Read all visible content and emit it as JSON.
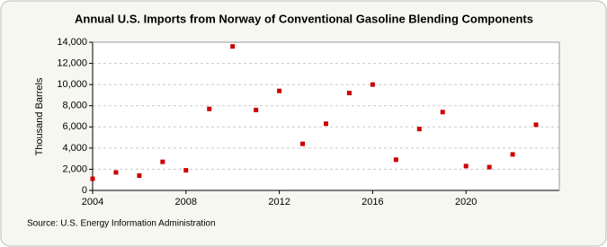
{
  "chart_data": {
    "type": "scatter",
    "title": "Annual U.S. Imports from Norway of Conventional Gasoline Blending Components",
    "y_label": "Thousand Barrels",
    "source": "Source: U.S. Energy Information Administration",
    "x": [
      2004,
      2005,
      2006,
      2007,
      2008,
      2009,
      2010,
      2011,
      2012,
      2013,
      2014,
      2015,
      2016,
      2017,
      2018,
      2019,
      2020,
      2021,
      2022,
      2023
    ],
    "series": [
      {
        "name": "Imports",
        "color": "#cc0000",
        "values": [
          1100,
          1700,
          1400,
          2700,
          1900,
          7700,
          13600,
          7600,
          9400,
          4400,
          6300,
          9200,
          10000,
          2900,
          5800,
          7400,
          2300,
          2200,
          3400,
          6200
        ]
      }
    ],
    "xlim": [
      2004,
      2024
    ],
    "xticks": [
      2004,
      2008,
      2012,
      2016,
      2020
    ],
    "ylim": [
      0,
      14000
    ],
    "yticks": [
      0,
      {
        "value": 2000,
        "label": "2,000"
      },
      {
        "value": 4000,
        "label": "4,000"
      },
      {
        "value": 6000,
        "label": "6,000"
      },
      {
        "value": 8000,
        "label": "8,000"
      },
      {
        "value": 10000,
        "label": "10,000"
      },
      {
        "value": 12000,
        "label": "12,000"
      },
      {
        "value": 14000,
        "label": "14,000"
      }
    ],
    "grid": true
  }
}
